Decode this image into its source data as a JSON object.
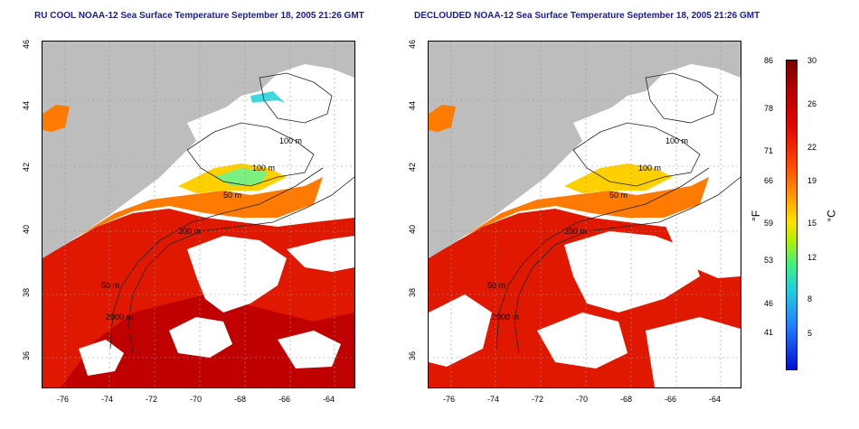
{
  "left_map": {
    "title": "RU COOL NOAA-12 Sea Surface Temperature September 18, 2005 21:26 GMT"
  },
  "right_map": {
    "title": "DECLOUDED NOAA-12 Sea Surface Temperature September 18, 2005 21:26 GMT"
  },
  "lon_ticks": [
    "-76",
    "-74",
    "-72",
    "-70",
    "-68",
    "-66",
    "-64"
  ],
  "lat_ticks": [
    "46",
    "44",
    "42",
    "40",
    "38",
    "36"
  ],
  "contours": [
    "100 m",
    "100 m",
    "50 m",
    "200 m",
    "50 m",
    "2000 m"
  ],
  "colorbar": {
    "unit_f": "°F",
    "unit_c": "°C",
    "f_top": "86",
    "c_top": "30",
    "f_values": [
      "78",
      "71",
      "66",
      "59",
      "53",
      "46",
      "41"
    ],
    "c_values": [
      "26",
      "22",
      "19",
      "15",
      "12",
      "8",
      "5"
    ]
  },
  "colors": {
    "land": "#bdbdbd",
    "title": "#1a1aa0",
    "warm": "#e01800",
    "cool": "#ffd000"
  }
}
